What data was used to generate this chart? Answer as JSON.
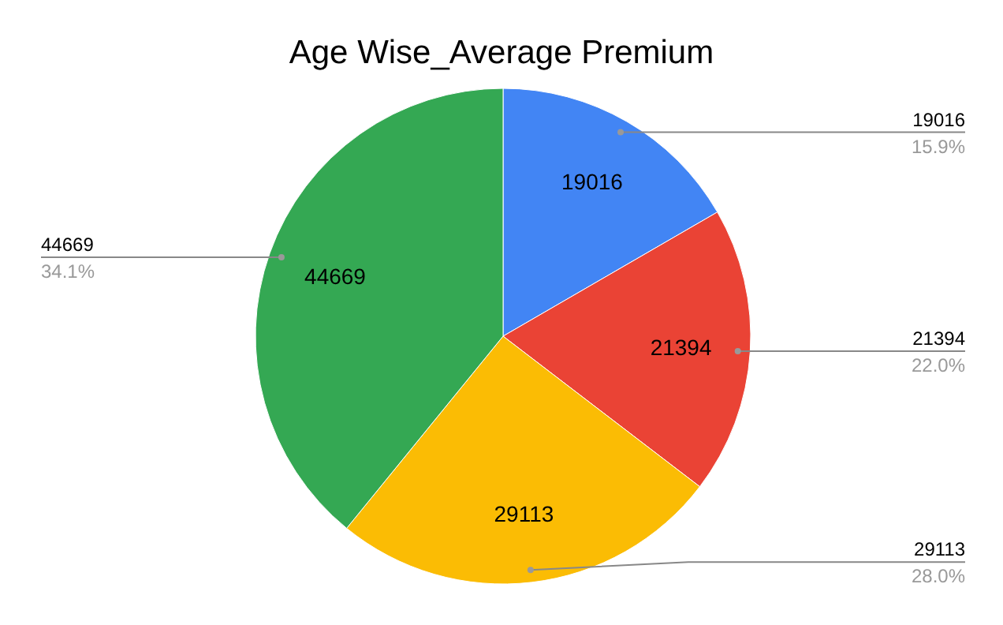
{
  "chart_data": {
    "type": "pie",
    "title": "Age Wise_Average Premium",
    "categories": [
      null,
      null,
      null,
      null
    ],
    "values": [
      19016,
      21394,
      29113,
      44669
    ],
    "data_labels": true,
    "colors": [
      "#4285f4",
      "#ea4335",
      "#fbbc04",
      "#34a853"
    ],
    "annotations": [
      "19016",
      "15.9%",
      "21394",
      "22.0%",
      "29113",
      "28.0%",
      "44669",
      "34.1%"
    ]
  }
}
